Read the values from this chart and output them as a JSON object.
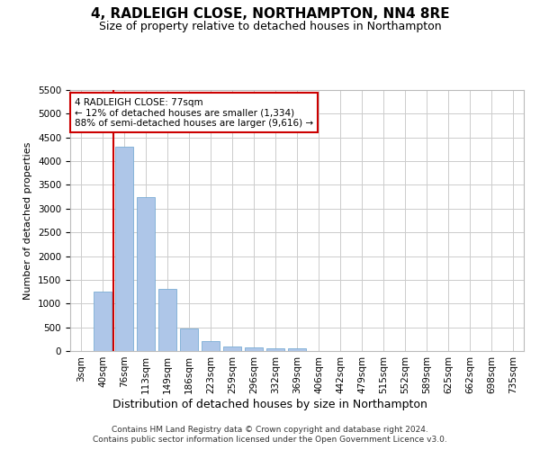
{
  "title": "4, RADLEIGH CLOSE, NORTHAMPTON, NN4 8RE",
  "subtitle": "Size of property relative to detached houses in Northampton",
  "xlabel": "Distribution of detached houses by size in Northampton",
  "ylabel": "Number of detached properties",
  "bar_color": "#aec6e8",
  "bar_edge_color": "#7aadd4",
  "categories": [
    "3sqm",
    "40sqm",
    "76sqm",
    "113sqm",
    "149sqm",
    "186sqm",
    "223sqm",
    "259sqm",
    "296sqm",
    "332sqm",
    "369sqm",
    "406sqm",
    "442sqm",
    "479sqm",
    "515sqm",
    "552sqm",
    "589sqm",
    "625sqm",
    "662sqm",
    "698sqm",
    "735sqm"
  ],
  "values": [
    0,
    1250,
    4300,
    3250,
    1300,
    480,
    200,
    100,
    80,
    60,
    50,
    0,
    0,
    0,
    0,
    0,
    0,
    0,
    0,
    0,
    0
  ],
  "ylim": [
    0,
    5500
  ],
  "yticks": [
    0,
    500,
    1000,
    1500,
    2000,
    2500,
    3000,
    3500,
    4000,
    4500,
    5000,
    5500
  ],
  "annotation_text": "4 RADLEIGH CLOSE: 77sqm\n← 12% of detached houses are smaller (1,334)\n88% of semi-detached houses are larger (9,616) →",
  "vline_color": "#cc0000",
  "annotation_box_color": "#ffffff",
  "annotation_box_edge_color": "#cc0000",
  "footer_line1": "Contains HM Land Registry data © Crown copyright and database right 2024.",
  "footer_line2": "Contains public sector information licensed under the Open Government Licence v3.0.",
  "background_color": "#ffffff",
  "grid_color": "#cccccc"
}
